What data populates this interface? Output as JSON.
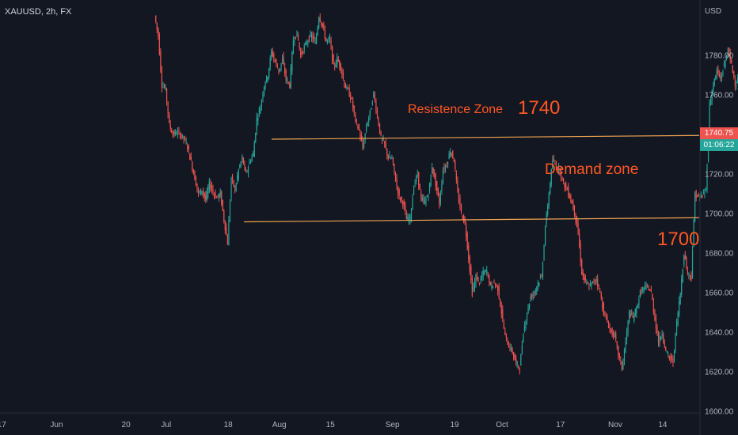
{
  "chart_data": {
    "type": "candlestick",
    "symbol_label": "XAUUSD, 2h, FX",
    "currency_label": "USD",
    "y_ticks": [
      "1780.00",
      "1760.00",
      "1740.00",
      "1720.00",
      "1700.00",
      "1680.00",
      "1660.00",
      "1640.00",
      "1620.00",
      "1600.00"
    ],
    "y_tick_values": [
      1780,
      1760,
      1740,
      1720,
      1700,
      1680,
      1660,
      1640,
      1620,
      1600
    ],
    "ylim": [
      1600,
      1795
    ],
    "x_ticks": [
      "17",
      "Jun",
      "20",
      "Jul",
      "18",
      "Aug",
      "15",
      "Sep",
      "19",
      "Oct",
      "17",
      "Nov",
      "14"
    ],
    "x_tick_days": [
      -14,
      1,
      20,
      31,
      48,
      62,
      76,
      93,
      110,
      123,
      139,
      154,
      167
    ],
    "day_range": [
      -14.5,
      177
    ],
    "price_path": [
      [
        28,
        1800
      ],
      [
        29,
        1790
      ],
      [
        30,
        1765
      ],
      [
        31,
        1763
      ],
      [
        32,
        1745
      ],
      [
        33,
        1740
      ],
      [
        34,
        1741
      ],
      [
        35,
        1740
      ],
      [
        36,
        1738
      ],
      [
        37,
        1734
      ],
      [
        38,
        1726
      ],
      [
        39,
        1718
      ],
      [
        40,
        1710
      ],
      [
        41,
        1712
      ],
      [
        42,
        1707
      ],
      [
        43,
        1715
      ],
      [
        44,
        1711
      ],
      [
        45,
        1708
      ],
      [
        46,
        1710
      ],
      [
        47,
        1697
      ],
      [
        48,
        1685
      ],
      [
        49,
        1718
      ],
      [
        50,
        1712
      ],
      [
        51,
        1722
      ],
      [
        52,
        1728
      ],
      [
        53,
        1720
      ],
      [
        54,
        1726
      ],
      [
        55,
        1730
      ],
      [
        56,
        1748
      ],
      [
        57,
        1754
      ],
      [
        58,
        1765
      ],
      [
        59,
        1770
      ],
      [
        60,
        1782
      ],
      [
        61,
        1777
      ],
      [
        62,
        1772
      ],
      [
        63,
        1778
      ],
      [
        64,
        1768
      ],
      [
        65,
        1765
      ],
      [
        66,
        1788
      ],
      [
        67,
        1791
      ],
      [
        68,
        1780
      ],
      [
        69,
        1784
      ],
      [
        70,
        1788
      ],
      [
        71,
        1790
      ],
      [
        72,
        1786
      ],
      [
        73,
        1800
      ],
      [
        74,
        1795
      ],
      [
        75,
        1787
      ],
      [
        76,
        1788
      ],
      [
        77,
        1774
      ],
      [
        78,
        1778
      ],
      [
        79,
        1774
      ],
      [
        80,
        1765
      ],
      [
        81,
        1762
      ],
      [
        82,
        1757
      ],
      [
        83,
        1747
      ],
      [
        84,
        1742
      ],
      [
        85,
        1733
      ],
      [
        86,
        1744
      ],
      [
        87,
        1751
      ],
      [
        88,
        1761
      ],
      [
        89,
        1749
      ],
      [
        90,
        1738
      ],
      [
        91,
        1735
      ],
      [
        92,
        1728
      ],
      [
        93,
        1728
      ],
      [
        94,
        1717
      ],
      [
        95,
        1708
      ],
      [
        96,
        1706
      ],
      [
        97,
        1697
      ],
      [
        98,
        1698
      ],
      [
        99,
        1714
      ],
      [
        100,
        1720
      ],
      [
        101,
        1707
      ],
      [
        102,
        1706
      ],
      [
        103,
        1710
      ],
      [
        104,
        1724
      ],
      [
        105,
        1715
      ],
      [
        106,
        1705
      ],
      [
        107,
        1722
      ],
      [
        108,
        1725
      ],
      [
        109,
        1732
      ],
      [
        110,
        1727
      ],
      [
        111,
        1710
      ],
      [
        112,
        1700
      ],
      [
        113,
        1695
      ],
      [
        114,
        1678
      ],
      [
        115,
        1660
      ],
      [
        116,
        1668
      ],
      [
        117,
        1665
      ],
      [
        118,
        1670
      ],
      [
        119,
        1671
      ],
      [
        120,
        1663
      ],
      [
        121,
        1665
      ],
      [
        122,
        1662
      ],
      [
        123,
        1650
      ],
      [
        124,
        1638
      ],
      [
        125,
        1633
      ],
      [
        126,
        1630
      ],
      [
        127,
        1624
      ],
      [
        128,
        1622
      ],
      [
        129,
        1640
      ],
      [
        130,
        1650
      ],
      [
        131,
        1658
      ],
      [
        132,
        1660
      ],
      [
        133,
        1665
      ],
      [
        134,
        1668
      ],
      [
        135,
        1693
      ],
      [
        136,
        1710
      ],
      [
        137,
        1727
      ],
      [
        138,
        1724
      ],
      [
        139,
        1722
      ],
      [
        140,
        1715
      ],
      [
        141,
        1712
      ],
      [
        142,
        1707
      ],
      [
        143,
        1701
      ],
      [
        144,
        1690
      ],
      [
        145,
        1670
      ],
      [
        146,
        1665
      ],
      [
        147,
        1663
      ],
      [
        148,
        1665
      ],
      [
        149,
        1667
      ],
      [
        150,
        1660
      ],
      [
        151,
        1650
      ],
      [
        152,
        1645
      ],
      [
        153,
        1640
      ],
      [
        154,
        1638
      ],
      [
        155,
        1629
      ],
      [
        156,
        1622
      ],
      [
        157,
        1635
      ],
      [
        158,
        1650
      ],
      [
        159,
        1647
      ],
      [
        160,
        1652
      ],
      [
        161,
        1660
      ],
      [
        162,
        1662
      ],
      [
        163,
        1663
      ],
      [
        164,
        1660
      ],
      [
        165,
        1647
      ],
      [
        166,
        1635
      ],
      [
        167,
        1640
      ],
      [
        168,
        1630
      ],
      [
        169,
        1627
      ],
      [
        170,
        1625
      ],
      [
        171,
        1645
      ],
      [
        172,
        1660
      ],
      [
        173,
        1680
      ],
      [
        174,
        1670
      ],
      [
        175,
        1668
      ],
      [
        176,
        1710
      ],
      [
        177,
        1708
      ],
      [
        178,
        1709
      ],
      [
        179,
        1712
      ],
      [
        180,
        1755
      ],
      [
        181,
        1765
      ],
      [
        182,
        1772
      ],
      [
        183,
        1768
      ],
      [
        184,
        1775
      ],
      [
        185,
        1783
      ],
      [
        186,
        1775
      ],
      [
        187,
        1766
      ],
      [
        188,
        1768
      ],
      [
        189,
        1757
      ],
      [
        190,
        1750
      ],
      [
        191,
        1741
      ]
    ],
    "resistance_line": [
      1737.6,
      1739.5
    ],
    "demand_line": [
      1695.8,
      1697.9
    ],
    "annotations": {
      "resistance_label": "Resistence Zone",
      "resistance_value": "1740",
      "demand_label": "Demand zone",
      "demand_value": "1700"
    },
    "last_price": "1740.75",
    "countdown": "01:06:22",
    "colors": {
      "up": "#26a69a",
      "down": "#ef5350",
      "line": "#f0a450",
      "annotation": "#ff5722",
      "axis_text": "#b2b5be"
    }
  }
}
